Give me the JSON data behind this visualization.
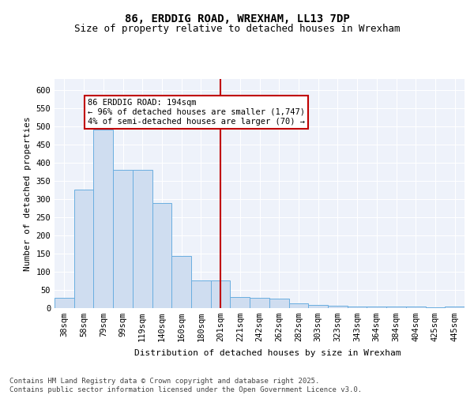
{
  "title": "86, ERDDIG ROAD, WREXHAM, LL13 7DP",
  "subtitle": "Size of property relative to detached houses in Wrexham",
  "xlabel": "Distribution of detached houses by size in Wrexham",
  "ylabel": "Number of detached properties",
  "categories": [
    "38sqm",
    "58sqm",
    "79sqm",
    "99sqm",
    "119sqm",
    "140sqm",
    "160sqm",
    "180sqm",
    "201sqm",
    "221sqm",
    "242sqm",
    "262sqm",
    "282sqm",
    "303sqm",
    "323sqm",
    "343sqm",
    "364sqm",
    "384sqm",
    "404sqm",
    "425sqm",
    "445sqm"
  ],
  "values": [
    28,
    325,
    490,
    380,
    380,
    290,
    143,
    75,
    75,
    30,
    28,
    25,
    14,
    8,
    6,
    5,
    5,
    5,
    5,
    2,
    5
  ],
  "bar_color": "#cfddf0",
  "bar_edge_color": "#6aaee0",
  "vline_x": 8.0,
  "vline_color": "#c00000",
  "annotation_text": "86 ERDDIG ROAD: 194sqm\n← 96% of detached houses are smaller (1,747)\n4% of semi-detached houses are larger (70) →",
  "annotation_box_edgecolor": "#c00000",
  "annotation_box_facecolor": "#ffffff",
  "ylim": [
    0,
    630
  ],
  "yticks": [
    0,
    50,
    100,
    150,
    200,
    250,
    300,
    350,
    400,
    450,
    500,
    550,
    600
  ],
  "footer_text": "Contains HM Land Registry data © Crown copyright and database right 2025.\nContains public sector information licensed under the Open Government Licence v3.0.",
  "background_color": "#eef2fa",
  "grid_color": "#ffffff",
  "title_fontsize": 10,
  "subtitle_fontsize": 9,
  "axis_label_fontsize": 8,
  "tick_fontsize": 7.5,
  "annotation_fontsize": 7.5,
  "footer_fontsize": 6.5
}
